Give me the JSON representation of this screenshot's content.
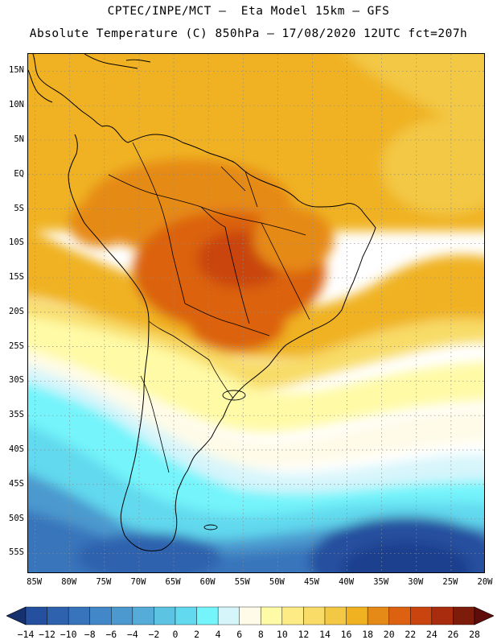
{
  "header": {
    "line1": "CPTEC/INPE/MCT –  Eta Model 15km – GFS",
    "line2": "Absolute Temperature (C) 850hPa – 17/08/2020 12UTC fct=207h"
  },
  "map": {
    "latitude_labels": [
      "15N",
      "10N",
      "5N",
      "EQ",
      "5S",
      "10S",
      "15S",
      "20S",
      "25S",
      "30S",
      "35S",
      "40S",
      "45S",
      "50S",
      "55S"
    ],
    "longitude_labels": [
      "85W",
      "80W",
      "75W",
      "70W",
      "65W",
      "60W",
      "55W",
      "50W",
      "45W",
      "40W",
      "35W",
      "30W",
      "25W",
      "20W"
    ],
    "lat_range_deg": [
      -58,
      17.5
    ],
    "lon_range_deg": [
      -86,
      -20
    ],
    "grid": "dotted"
  },
  "legend": {
    "values": [
      "-14",
      "-12",
      "-10",
      "-8",
      "-6",
      "-4",
      "-2",
      "0",
      "2",
      "4",
      "6",
      "8",
      "10",
      "12",
      "14",
      "16",
      "18",
      "20",
      "22",
      "24",
      "26",
      "28"
    ],
    "colors": [
      "#1a3f8e",
      "#25509f",
      "#2f62ae",
      "#3874bb",
      "#4287c7",
      "#4b99cf",
      "#55acd8",
      "#5cc3e2",
      "#62d9ee",
      "#74f4fb",
      "#d6f5fb",
      "#fffbe8",
      "#fffaa6",
      "#fdeb85",
      "#f8dc67",
      "#f3c844",
      "#f0b220",
      "#e68a17",
      "#dc6211",
      "#c9440f",
      "#a82c0d",
      "#7d1c0b"
    ],
    "under_color": "#17306e",
    "over_color": "#5e0d0a"
  }
}
